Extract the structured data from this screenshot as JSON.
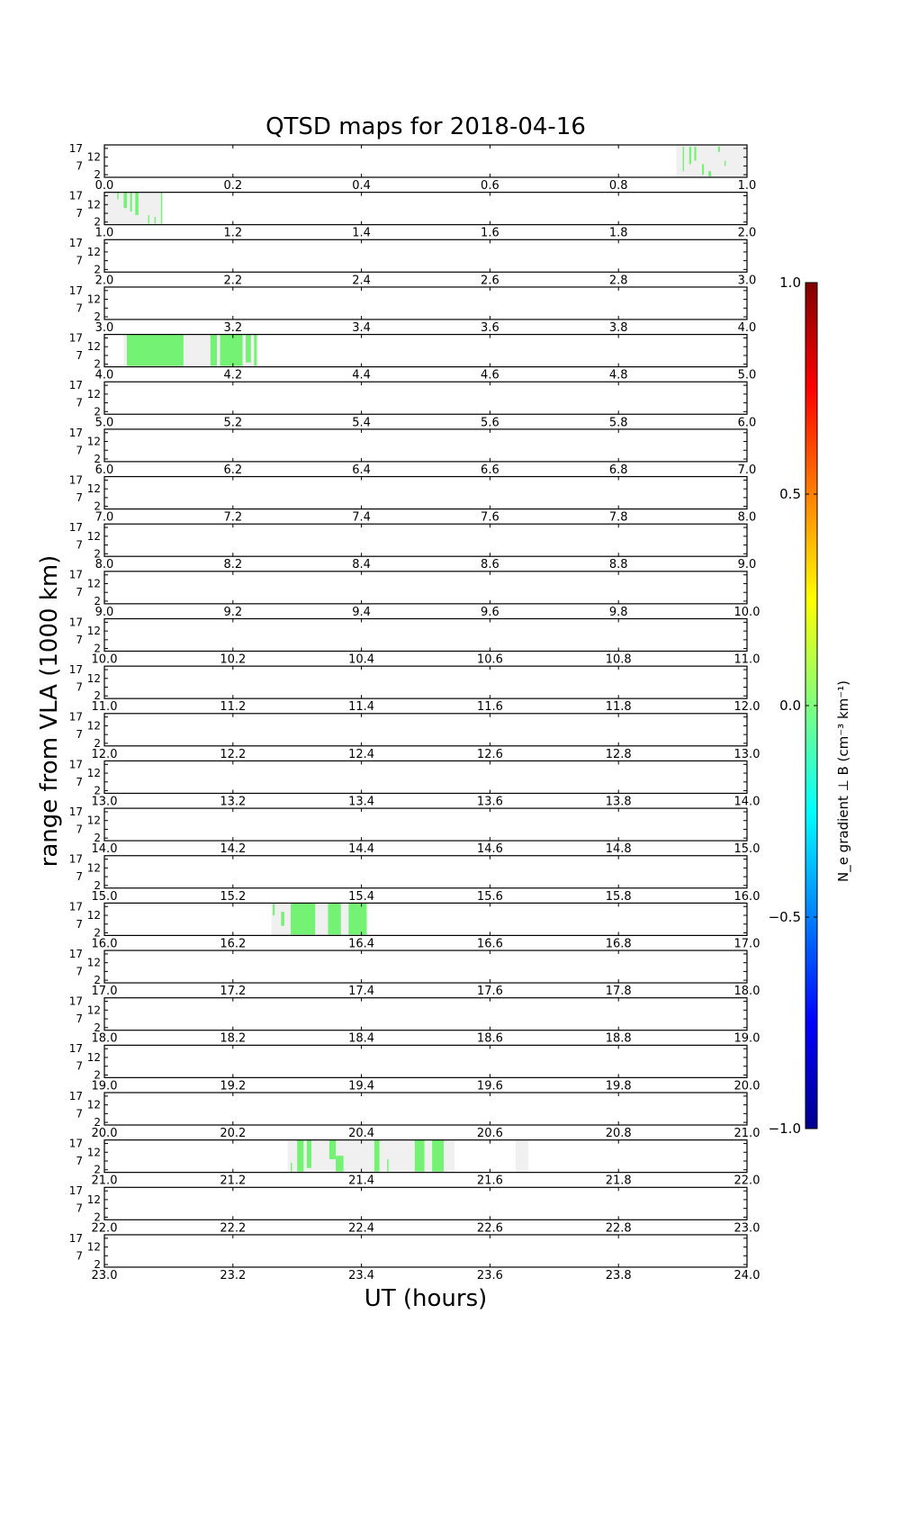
{
  "chart_data": {
    "type": "heatmap",
    "title": "QTSD maps for 2018-04-16",
    "xlabel": "UT (hours)",
    "ylabel": "range from VLA (1000 km)",
    "ytick_labels": [
      "17",
      "12",
      "7",
      "2"
    ],
    "yticks": [
      17,
      12,
      7,
      2
    ],
    "ylim": [
      0.5,
      19
    ],
    "panel_count": 24,
    "panel_hours": 1,
    "xtick_step": 0.2,
    "coverage_color": "#f0f0f0",
    "value_color": "#74f274",
    "coverage": [
      {
        "start": 0.89,
        "end": 1.0
      },
      {
        "start": 1.0,
        "end": 1.09
      },
      {
        "start": 4.03,
        "end": 4.24
      },
      {
        "start": 16.26,
        "end": 16.41
      },
      {
        "start": 21.285,
        "end": 21.545
      },
      {
        "start": 21.64,
        "end": 21.66
      }
    ],
    "segments": [
      {
        "start": 0.9,
        "end": 0.902,
        "ylo": 4,
        "yhi": 18
      },
      {
        "start": 0.91,
        "end": 0.913,
        "ylo": 8,
        "yhi": 18
      },
      {
        "start": 0.918,
        "end": 0.921,
        "ylo": 10,
        "yhi": 18
      },
      {
        "start": 0.93,
        "end": 0.933,
        "ylo": 2,
        "yhi": 8
      },
      {
        "start": 0.94,
        "end": 0.944,
        "ylo": 1,
        "yhi": 4
      },
      {
        "start": 0.955,
        "end": 0.958,
        "ylo": 15,
        "yhi": 18
      },
      {
        "start": 0.965,
        "end": 0.967,
        "ylo": 7,
        "yhi": 10
      },
      {
        "start": 1.02,
        "end": 1.022,
        "ylo": 15,
        "yhi": 19
      },
      {
        "start": 1.03,
        "end": 1.035,
        "ylo": 10,
        "yhi": 19
      },
      {
        "start": 1.04,
        "end": 1.043,
        "ylo": 8,
        "yhi": 19
      },
      {
        "start": 1.048,
        "end": 1.053,
        "ylo": 6,
        "yhi": 19
      },
      {
        "start": 1.068,
        "end": 1.07,
        "ylo": 1,
        "yhi": 6
      },
      {
        "start": 1.078,
        "end": 1.08,
        "ylo": 1,
        "yhi": 5
      },
      {
        "start": 1.088,
        "end": 1.09,
        "ylo": 1,
        "yhi": 19
      },
      {
        "start": 4.035,
        "end": 4.123,
        "ylo": 1,
        "yhi": 19
      },
      {
        "start": 4.165,
        "end": 4.175,
        "ylo": 1,
        "yhi": 19
      },
      {
        "start": 4.18,
        "end": 4.215,
        "ylo": 1,
        "yhi": 19
      },
      {
        "start": 4.22,
        "end": 4.228,
        "ylo": 3,
        "yhi": 19
      },
      {
        "start": 4.233,
        "end": 4.237,
        "ylo": 1,
        "yhi": 19
      },
      {
        "start": 16.262,
        "end": 16.265,
        "ylo": 12,
        "yhi": 19
      },
      {
        "start": 16.275,
        "end": 16.28,
        "ylo": 6,
        "yhi": 14
      },
      {
        "start": 16.29,
        "end": 16.328,
        "ylo": 1,
        "yhi": 19
      },
      {
        "start": 16.348,
        "end": 16.368,
        "ylo": 1,
        "yhi": 19
      },
      {
        "start": 16.38,
        "end": 16.408,
        "ylo": 1,
        "yhi": 19
      },
      {
        "start": 21.29,
        "end": 21.292,
        "ylo": 1,
        "yhi": 6
      },
      {
        "start": 21.3,
        "end": 21.31,
        "ylo": 1,
        "yhi": 19
      },
      {
        "start": 21.315,
        "end": 21.322,
        "ylo": 3,
        "yhi": 19
      },
      {
        "start": 21.35,
        "end": 21.36,
        "ylo": 8,
        "yhi": 19
      },
      {
        "start": 21.36,
        "end": 21.372,
        "ylo": 1,
        "yhi": 10
      },
      {
        "start": 21.42,
        "end": 21.428,
        "ylo": 1,
        "yhi": 19
      },
      {
        "start": 21.44,
        "end": 21.442,
        "ylo": 1,
        "yhi": 8
      },
      {
        "start": 21.483,
        "end": 21.498,
        "ylo": 1,
        "yhi": 19
      },
      {
        "start": 21.51,
        "end": 21.528,
        "ylo": 1,
        "yhi": 19
      }
    ],
    "colorbar": {
      "label": "N_e gradient ⊥ B (cm⁻³ km⁻¹)",
      "vmin": -1.0,
      "vmax": 1.0,
      "tick_labels": [
        "1.0",
        "0.5",
        "0.0",
        "−0.5",
        "−1.0"
      ],
      "ticks": [
        1.0,
        0.5,
        0.0,
        -0.5,
        -1.0
      ],
      "colormap": "jet"
    }
  }
}
